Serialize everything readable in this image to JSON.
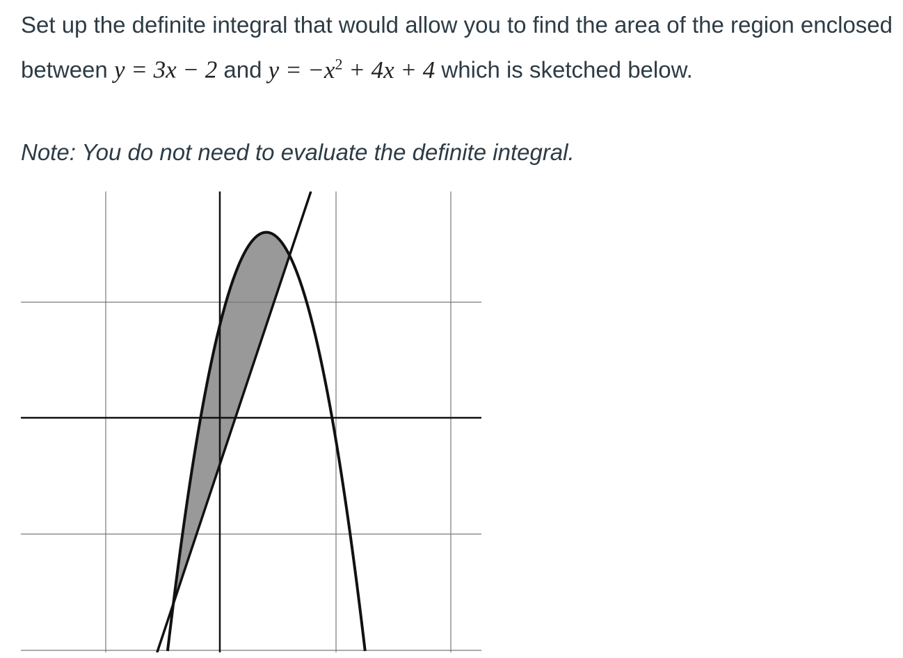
{
  "question": {
    "intro": "Set up the definite integral that would allow you to find the area of the region enclosed between",
    "equation_1": "y = 3x − 2",
    "connector": "and",
    "equation_2": {
      "base": "y = −x",
      "exponent": "2",
      "rest": "+ 4x + 4"
    },
    "outro": "which is sketched below.",
    "note": "Note: You do not need to evaluate the definite integral."
  }
}
